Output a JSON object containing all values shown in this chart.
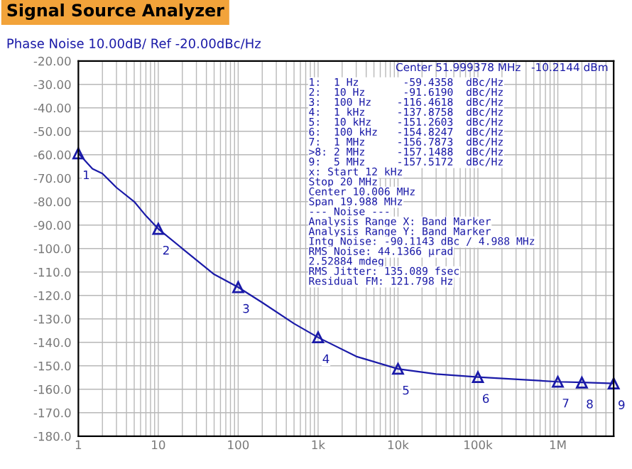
{
  "chart_data": {
    "type": "line",
    "title": "Signal Source Analyzer",
    "subtitle": "Phase Noise 10.00dB/ Ref -20.00dBc/Hz",
    "x": [
      1,
      1.5,
      2,
      3,
      5,
      7,
      10,
      20,
      50,
      100,
      200,
      500,
      1000,
      3000,
      10000,
      30000,
      100000,
      1000000,
      2000000,
      5000000
    ],
    "series": [
      {
        "color": "#1a1aa8",
        "values": [
          -59.4,
          -66,
          -68,
          -74,
          -80,
          -86,
          -91.6,
          -100,
          -111,
          -116.5,
          -123,
          -132,
          -137.9,
          -146,
          -151.3,
          -153.5,
          -154.8,
          -156.8,
          -157.1,
          -157.5
        ]
      }
    ],
    "log": "x",
    "xlim": [
      1,
      5000000
    ],
    "xticks": [
      1,
      10,
      100,
      {
        "value": 1000,
        "label": "1k"
      },
      {
        "value": 10000,
        "label": "10k"
      },
      {
        "value": 100000,
        "label": "100k"
      },
      {
        "value": 1000000,
        "label": "1M"
      }
    ],
    "ylim": [
      -180,
      -20
    ],
    "yticks": [
      {
        "value": -20,
        "label": "-20.00"
      },
      {
        "value": -30,
        "label": "-30.00"
      },
      {
        "value": -40,
        "label": "-40.00"
      },
      {
        "value": -50,
        "label": "-50.00"
      },
      {
        "value": -60,
        "label": "-60.00"
      },
      {
        "value": -70,
        "label": "-70.00"
      },
      {
        "value": -80,
        "label": "-80.00"
      },
      {
        "value": -90,
        "label": "-90.00"
      },
      {
        "value": -100,
        "label": "-100.0"
      },
      {
        "value": -110,
        "label": "-110.0"
      },
      {
        "value": -120,
        "label": "-120.0"
      },
      {
        "value": -130,
        "label": "-130.0"
      },
      {
        "value": -140,
        "label": "-140.0"
      },
      {
        "value": -150,
        "label": "-150.0"
      },
      {
        "value": -160,
        "label": "-160.0"
      },
      {
        "value": -170,
        "label": "-170.0"
      },
      {
        "value": -180,
        "label": "-180.0"
      }
    ],
    "grid": true,
    "legend": false,
    "annotations": [
      {
        "text": "1",
        "x": 1,
        "y": -59.4358
      },
      {
        "text": "2",
        "x": 10,
        "y": -91.619
      },
      {
        "text": "3",
        "x": 100,
        "y": -116.4618
      },
      {
        "text": "4",
        "x": 1000,
        "y": -137.8758
      },
      {
        "text": "5",
        "x": 10000,
        "y": -151.2603
      },
      {
        "text": "6",
        "x": 100000,
        "y": -154.8247
      },
      {
        "text": "7",
        "x": 1000000,
        "y": -156.7873
      },
      {
        "text": "8",
        "x": 2000000,
        "y": -157.1488
      },
      {
        "text": "9",
        "x": 5000000,
        "y": -157.5172
      },
      "Center 51.999378 MHz   -10.2144 dBm",
      "1:  1 Hz       -59.4358  dBc/Hz",
      "2:  10 Hz      -91.6190  dBc/Hz",
      "3:  100 Hz    -116.4618  dBc/Hz",
      "4:  1 kHz     -137.8758  dBc/Hz",
      "5:  10 kHz    -151.2603  dBc/Hz",
      "6:  100 kHz   -154.8247  dBc/Hz",
      "7:  1 MHz     -156.7873  dBc/Hz",
      ">8: 2 MHz     -157.1488  dBc/Hz",
      "9:  5 MHz     -157.5172  dBc/Hz",
      "x: Start 12 kHz",
      "Stop 20 MHz",
      "Center 10.006 MHz",
      "Span 19.988 MHz",
      "--- Noise ---",
      "Analysis Range X: Band Marker",
      "Analysis Range Y: Band Marker",
      "Intg Noise: -90.1143 dBc / 4.988 MHz",
      "RMS Noise: 44.1366 µrad",
      "2.52884 mdeg",
      "RMS Jitter: 135.089 fsec",
      "Residual FM: 121.798 Hz"
    ]
  }
}
